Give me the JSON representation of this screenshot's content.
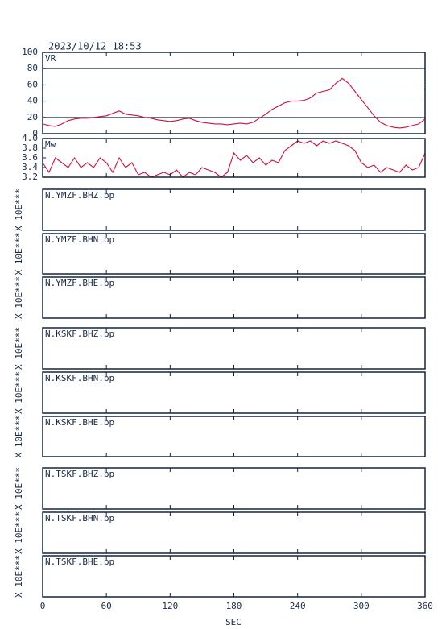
{
  "title": "2023/10/12  18:53",
  "time_axis": {
    "xlim": [
      0,
      360
    ],
    "xticks": [
      0,
      60,
      120,
      180,
      240,
      300,
      360
    ],
    "xlabel": "SEC"
  },
  "chart_data": [
    {
      "type": "line",
      "label": "VR",
      "ylim": [
        0,
        100
      ],
      "yticks": [
        0,
        20,
        40,
        60,
        80,
        100
      ],
      "grid": true,
      "x": [
        0,
        6,
        12,
        18,
        24,
        30,
        36,
        42,
        48,
        54,
        60,
        66,
        72,
        78,
        84,
        90,
        96,
        102,
        108,
        114,
        120,
        126,
        132,
        138,
        144,
        150,
        156,
        162,
        168,
        174,
        180,
        186,
        192,
        198,
        204,
        210,
        216,
        222,
        228,
        234,
        240,
        246,
        252,
        258,
        264,
        270,
        276,
        282,
        288,
        294,
        300,
        306,
        312,
        318,
        324,
        330,
        336,
        342,
        348,
        354,
        360
      ],
      "series": [
        {
          "color": "#d0103a",
          "values": [
            12,
            10,
            9,
            12,
            16,
            18,
            19,
            19,
            20,
            21,
            22,
            25,
            28,
            24,
            23,
            22,
            20,
            19,
            17,
            16,
            15,
            16,
            18,
            19,
            16,
            14,
            13,
            12,
            12,
            11,
            12,
            13,
            12,
            14,
            19,
            24,
            30,
            34,
            38,
            40,
            40,
            41,
            44,
            50,
            52,
            54,
            62,
            68,
            62,
            52,
            42,
            32,
            22,
            14,
            10,
            8,
            7,
            8,
            10,
            12,
            18
          ]
        }
      ]
    },
    {
      "type": "line",
      "label": "Mw",
      "ylim": [
        3.2,
        4.0
      ],
      "yticks": [
        3.2,
        3.4,
        3.6,
        3.8,
        {
          "value": 4.0,
          "label": "4.0"
        }
      ],
      "grid": false,
      "x": [
        0,
        6,
        12,
        18,
        24,
        30,
        36,
        42,
        48,
        54,
        60,
        66,
        72,
        78,
        84,
        90,
        96,
        102,
        108,
        114,
        120,
        126,
        132,
        138,
        144,
        150,
        156,
        162,
        168,
        174,
        180,
        186,
        192,
        198,
        204,
        210,
        216,
        222,
        228,
        234,
        240,
        246,
        252,
        258,
        264,
        270,
        276,
        282,
        288,
        294,
        300,
        306,
        312,
        318,
        324,
        330,
        336,
        342,
        348,
        354,
        360
      ],
      "series": [
        {
          "color": "#d0103a",
          "values": [
            3.5,
            3.3,
            3.6,
            3.5,
            3.4,
            3.6,
            3.4,
            3.5,
            3.4,
            3.6,
            3.5,
            3.3,
            3.6,
            3.4,
            3.5,
            3.25,
            3.3,
            3.2,
            3.25,
            3.3,
            3.25,
            3.35,
            3.2,
            3.3,
            3.25,
            3.4,
            3.35,
            3.3,
            3.2,
            3.3,
            3.7,
            3.55,
            3.65,
            3.5,
            3.6,
            3.45,
            3.55,
            3.5,
            3.75,
            3.85,
            3.95,
            3.9,
            3.95,
            3.85,
            3.95,
            3.9,
            3.95,
            3.9,
            3.85,
            3.75,
            3.5,
            3.4,
            3.45,
            3.3,
            3.4,
            3.35,
            3.3,
            3.45,
            3.35,
            3.4,
            3.7
          ]
        }
      ]
    }
  ],
  "traces": [
    {
      "label": "N.YMZF.BHZ.bp",
      "ylabel": "X 10E***"
    },
    {
      "label": "N.YMZF.BHN.bp",
      "ylabel": "X 10E***"
    },
    {
      "label": "N.YMZF.BHE.bp",
      "ylabel": "X 10E***"
    },
    {
      "label": "N.KSKF.BHZ.bp",
      "ylabel": "X 10E***"
    },
    {
      "label": "N.KSKF.BHN.bp",
      "ylabel": "X 10E***"
    },
    {
      "label": "N.KSKF.BHE.bp",
      "ylabel": "X 10E***"
    },
    {
      "label": "N.TSKF.BHZ.bp",
      "ylabel": "X 10E***"
    },
    {
      "label": "N.TSKF.BHN.bp",
      "ylabel": "X 10E***"
    },
    {
      "label": "N.TSKF.BHE.bp",
      "ylabel": "X 10E***"
    }
  ]
}
